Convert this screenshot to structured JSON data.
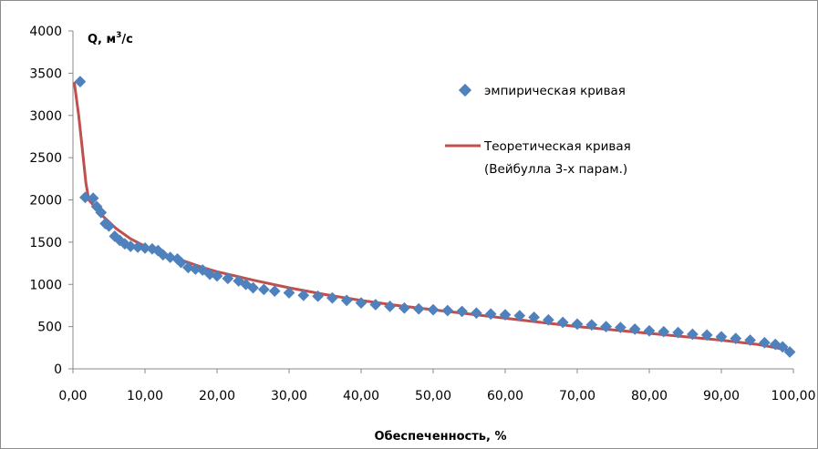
{
  "chart_data": {
    "type": "scatter",
    "ylabel_main": "Q, м",
    "ylabel_sup": "3",
    "ylabel_tail": "/с",
    "xlabel": "Обеспеченность, %",
    "xlim": [
      0,
      100
    ],
    "ylim": [
      0,
      4000
    ],
    "xticks": [
      0,
      10,
      20,
      30,
      40,
      50,
      60,
      70,
      80,
      90,
      100
    ],
    "xtick_labels": [
      "0,00",
      "10,00",
      "20,00",
      "30,00",
      "40,00",
      "50,00",
      "60,00",
      "70,00",
      "80,00",
      "90,00",
      "100,00"
    ],
    "yticks": [
      0,
      500,
      1000,
      1500,
      2000,
      2500,
      3000,
      3500,
      4000
    ],
    "ytick_labels": [
      "0",
      "500",
      "1000",
      "1500",
      "2000",
      "2500",
      "3000",
      "3500",
      "4000"
    ],
    "grid": false,
    "legend_position": "top-right",
    "colors": {
      "empirical": "#4f81bd",
      "theoretical": "#c0504d"
    },
    "series": [
      {
        "name": "эмпирическая кривая",
        "kind": "scatter",
        "x": [
          1.0,
          1.7,
          2.8,
          3.3,
          3.9,
          4.5,
          5.0,
          5.8,
          6.5,
          7.2,
          8.0,
          9.0,
          10.0,
          11.0,
          11.8,
          12.5,
          13.5,
          14.5,
          15.0,
          16.0,
          17.0,
          18.0,
          19.0,
          20.0,
          21.5,
          23.0,
          24.0,
          25.0,
          26.5,
          28.0,
          30.0,
          32.0,
          34.0,
          36.0,
          38.0,
          40.0,
          42.0,
          44.0,
          46.0,
          48.0,
          50.0,
          52.0,
          54.0,
          56.0,
          58.0,
          60.0,
          62.0,
          64.0,
          66.0,
          68.0,
          70.0,
          72.0,
          74.0,
          76.0,
          78.0,
          80.0,
          82.0,
          84.0,
          86.0,
          88.0,
          90.0,
          92.0,
          94.0,
          96.0,
          97.5,
          98.5,
          99.5
        ],
        "y": [
          3400,
          2030,
          2020,
          1920,
          1850,
          1720,
          1690,
          1570,
          1520,
          1480,
          1450,
          1440,
          1430,
          1420,
          1400,
          1350,
          1320,
          1300,
          1260,
          1200,
          1180,
          1170,
          1120,
          1100,
          1070,
          1040,
          1000,
          960,
          940,
          920,
          900,
          870,
          860,
          840,
          810,
          780,
          760,
          740,
          720,
          710,
          700,
          690,
          680,
          660,
          650,
          640,
          630,
          610,
          580,
          550,
          530,
          520,
          500,
          490,
          470,
          450,
          440,
          430,
          410,
          400,
          380,
          360,
          340,
          310,
          290,
          260,
          200
        ]
      },
      {
        "name": "Теоретическая кривая",
        "name_line2": "(Вейбулла 3-х парам.)",
        "kind": "line",
        "x": [
          0.2,
          0.8,
          1.3,
          1.8,
          2.2,
          3.0,
          4.0,
          5.0,
          6.0,
          8.0,
          10.0,
          12.0,
          15.0,
          18.0,
          20.0,
          25.0,
          30.0,
          35.0,
          40.0,
          45.0,
          50.0,
          55.0,
          60.0,
          65.0,
          70.0,
          75.0,
          80.0,
          85.0,
          90.0,
          95.0,
          99.5
        ],
        "y": [
          3380,
          3000,
          2600,
          2200,
          2000,
          1920,
          1820,
          1740,
          1660,
          1540,
          1450,
          1380,
          1290,
          1200,
          1150,
          1050,
          960,
          880,
          810,
          750,
          700,
          650,
          600,
          550,
          500,
          460,
          420,
          380,
          340,
          290,
          220
        ]
      }
    ]
  }
}
